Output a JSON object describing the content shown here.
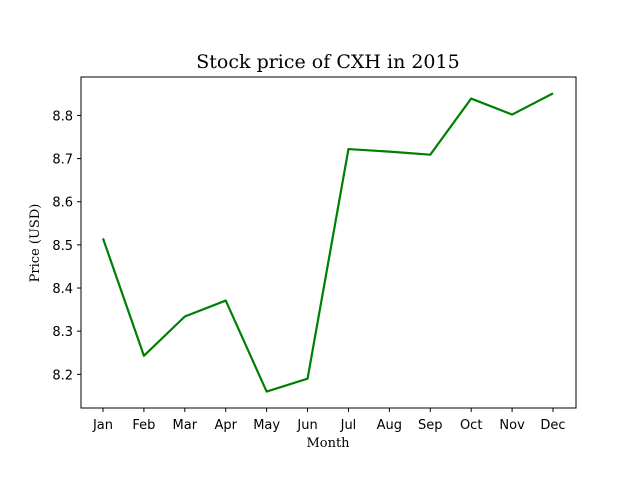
{
  "chart_data": {
    "type": "line",
    "title": "Stock price of CXH in 2015",
    "xlabel": "Month",
    "ylabel": "Price (USD)",
    "categories": [
      "Jan",
      "Feb",
      "Mar",
      "Apr",
      "May",
      "Jun",
      "Jul",
      "Aug",
      "Sep",
      "Oct",
      "Nov",
      "Dec"
    ],
    "series": [
      {
        "values": [
          8.515,
          8.243,
          8.334,
          8.371,
          8.16,
          8.19,
          8.722,
          8.716,
          8.709,
          8.839,
          8.802,
          8.851
        ]
      }
    ],
    "yticks": [
      "8.2",
      "8.3",
      "8.4",
      "8.5",
      "8.6",
      "8.7",
      "8.8"
    ],
    "ylim": [
      8.122,
      8.889
    ],
    "grid": false,
    "line_color": "#008000"
  }
}
